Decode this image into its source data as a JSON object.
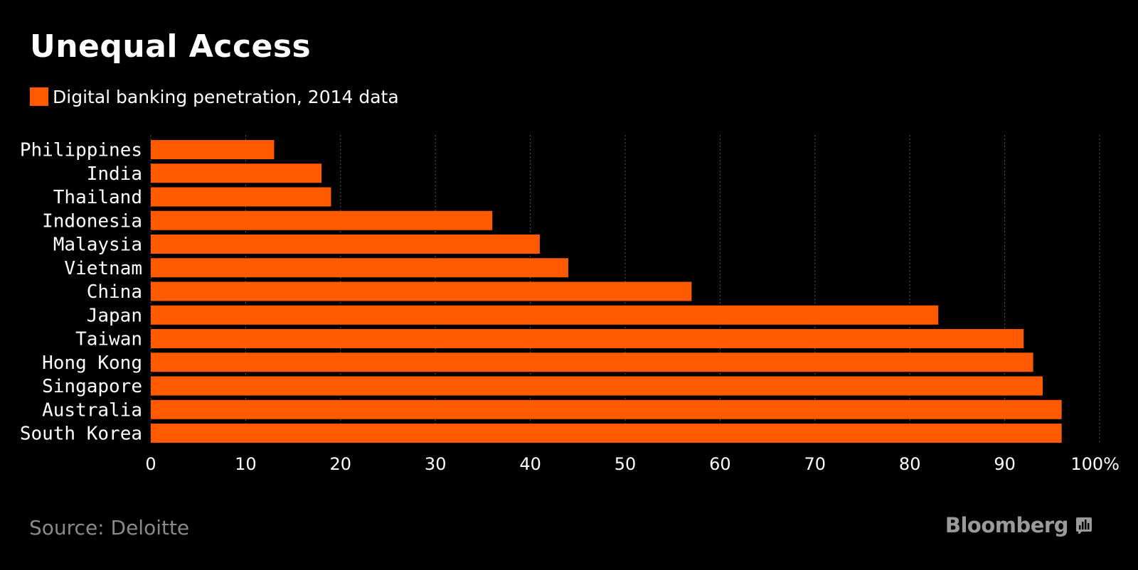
{
  "header": {
    "title": "Unequal Access"
  },
  "legend": {
    "label": "Digital banking penetration, 2014 data"
  },
  "footer": {
    "source": "Source: Deloitte",
    "brand": "Bloomberg",
    "brand_icon": "bloomberg-chart-icon"
  },
  "colors": {
    "background": "#000000",
    "bar": "#ff5a00",
    "grid": "#555555",
    "text": "#ffffff",
    "muted": "#8a8a8a"
  },
  "chart_data": {
    "type": "bar",
    "orientation": "horizontal",
    "title": "Unequal Access",
    "xlabel": "",
    "ylabel": "",
    "xlim": [
      0,
      100
    ],
    "tick_values": [
      0,
      10,
      20,
      30,
      40,
      50,
      60,
      70,
      80,
      90,
      100
    ],
    "tick_labels": [
      "0",
      "10",
      "20",
      "30",
      "40",
      "50",
      "60",
      "70",
      "80",
      "90",
      "100%"
    ],
    "grid": true,
    "legend_position": "top-left",
    "categories": [
      "Philippines",
      "India",
      "Thailand",
      "Indonesia",
      "Malaysia",
      "Vietnam",
      "China",
      "Japan",
      "Taiwan",
      "Hong Kong",
      "Singapore",
      "Australia",
      "South Korea"
    ],
    "series": [
      {
        "name": "Digital banking penetration, 2014 data",
        "values": [
          13,
          18,
          19,
          36,
          41,
          44,
          57,
          83,
          92,
          93,
          94,
          96,
          96
        ]
      }
    ]
  }
}
